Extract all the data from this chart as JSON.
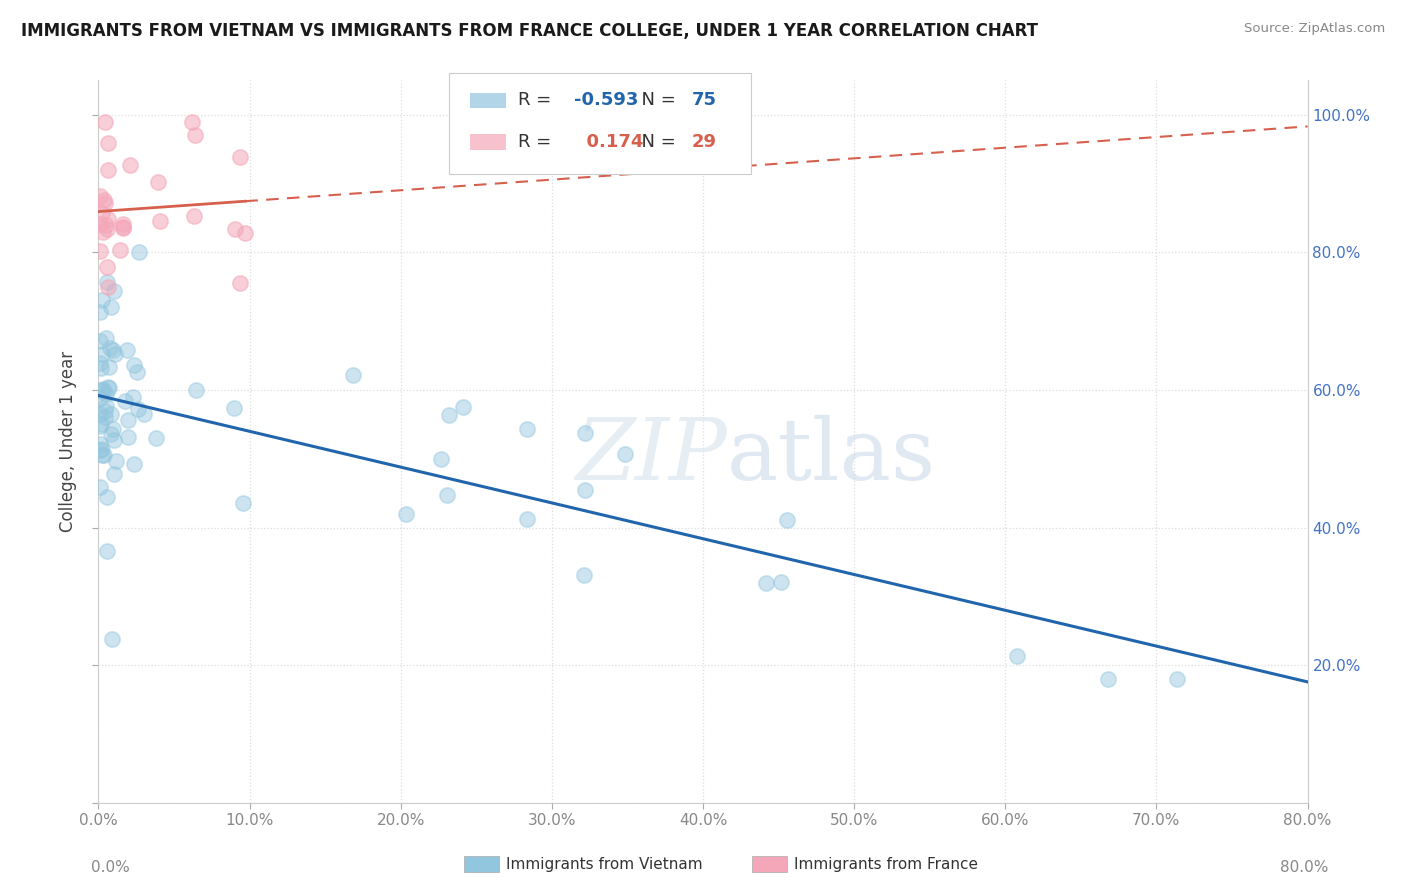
{
  "title": "IMMIGRANTS FROM VIETNAM VS IMMIGRANTS FROM FRANCE COLLEGE, UNDER 1 YEAR CORRELATION CHART",
  "source": "Source: ZipAtlas.com",
  "ylabel": "College, Under 1 year",
  "vietnam_R": -0.593,
  "vietnam_N": 75,
  "france_R": 0.174,
  "france_N": 29,
  "vietnam_color": "#92c5de",
  "france_color": "#f4a7b9",
  "vietnam_line_color": "#2166ac",
  "france_line_color": "#d6604d",
  "background_color": "#ffffff",
  "xlim": [
    0.0,
    0.8
  ],
  "ylim": [
    0.0,
    1.05
  ],
  "x_ticks": [
    0.0,
    0.1,
    0.2,
    0.3,
    0.4,
    0.5,
    0.6,
    0.7,
    0.8
  ],
  "y_ticks": [
    0.0,
    0.2,
    0.4,
    0.6,
    0.8,
    1.0
  ],
  "y_tick_labels": [
    "",
    "20.0%",
    "40.0%",
    "60.0%",
    "80.0%",
    "100.0%"
  ],
  "title_fontsize": 12,
  "axis_fontsize": 11,
  "marker_size": 120,
  "grid_color": "#dddddd",
  "tick_label_color": "#888888",
  "right_tick_color": "#4472c4"
}
